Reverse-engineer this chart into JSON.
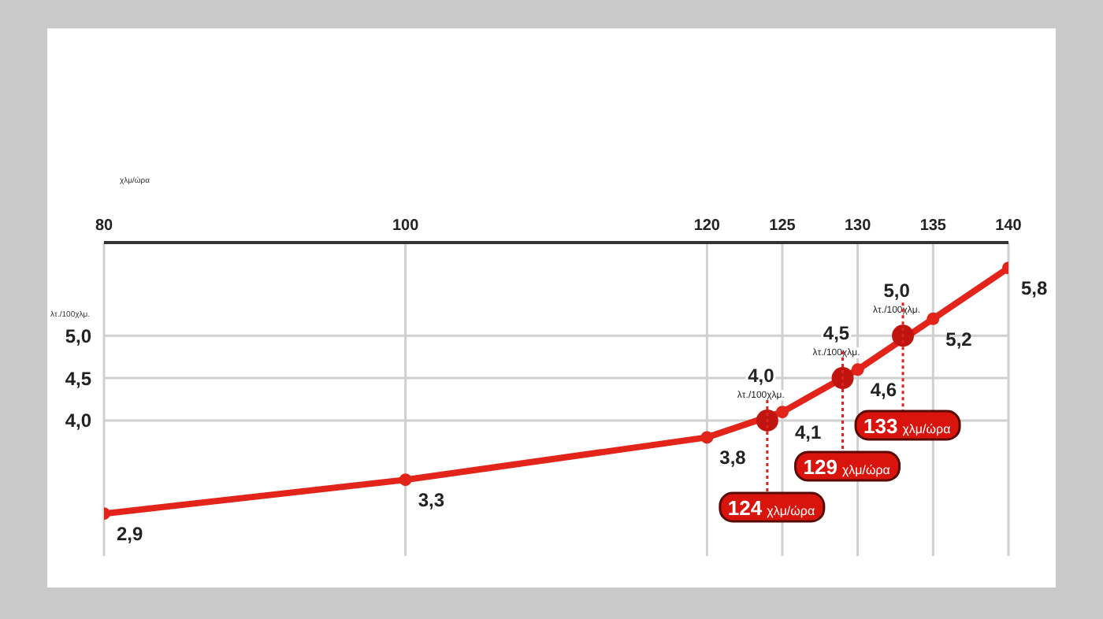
{
  "chart_data": {
    "type": "line",
    "xlabel": "χλμ/ώρα",
    "ylabel": "λτ./100χλμ.",
    "xlim": [
      80,
      140
    ],
    "xticks": [
      80,
      100,
      120,
      125,
      130,
      135,
      140
    ],
    "ylim": [
      2.4,
      6.1
    ],
    "yticks": [
      {
        "value": 4,
        "label": "4,0"
      },
      {
        "value": 4.5,
        "label": "4,5"
      },
      {
        "value": 5,
        "label": "5,0"
      }
    ],
    "grid": true,
    "marker": "circle",
    "line_style": "solid",
    "series": [
      {
        "color": "#e3241b",
        "x": [
          80,
          100,
          120,
          125,
          130,
          135,
          140
        ],
        "values": [
          2.9,
          3.3,
          3.8,
          4.1,
          4.6,
          5.2,
          5.8
        ],
        "value_labels": [
          "2,9",
          "3,3",
          "3,8",
          "4,1",
          "4,6",
          "5,2",
          "5,8"
        ]
      },
      {
        "type": "scatter",
        "color": "#c0150f",
        "x": [
          124,
          129,
          133
        ],
        "values": [
          4.0,
          4.5,
          5.0
        ],
        "value_labels": [
          "4,0 λτ./100χλμ.",
          "4,5 λτ./100χλμ.",
          "5,0 λτ./100χλμ."
        ]
      }
    ],
    "annotations": [
      "124 χλμ/ώρα",
      "129 χλμ/ώρα",
      "133 χλμ/ώρα"
    ]
  }
}
